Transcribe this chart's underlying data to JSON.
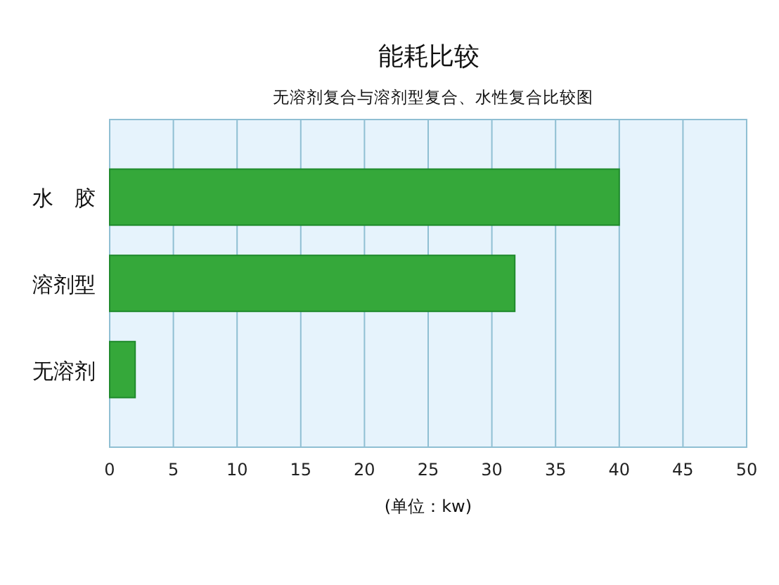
{
  "chart_data": {
    "type": "bar",
    "orientation": "horizontal",
    "title": "能耗比较",
    "subtitle": "无溶剂复合与溶剂型复合、水性复合比较图",
    "xlabel": "(单位：kw)",
    "categories": [
      "水　胶",
      "溶剂型",
      "无溶剂"
    ],
    "values": [
      40,
      31.8,
      2
    ],
    "color": "#35a83a",
    "xlim": [
      0,
      50
    ],
    "xticks": [
      0,
      5,
      10,
      15,
      20,
      25,
      30,
      35,
      40,
      45,
      50
    ],
    "grid": "x"
  }
}
